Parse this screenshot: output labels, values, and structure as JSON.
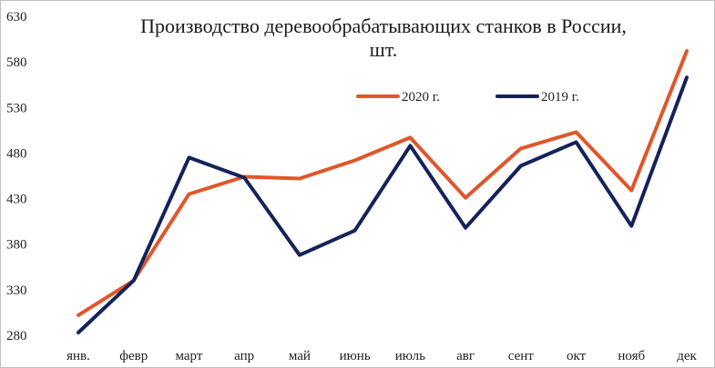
{
  "chart_data": {
    "type": "line",
    "title_line1": "Производство деревообрабатывающих станков в России,",
    "title_line2": "шт.",
    "categories": [
      "янв.",
      "февр",
      "март",
      "апр",
      "май",
      "июнь",
      "июль",
      "авг",
      "сент",
      "окт",
      "нояб",
      "дек"
    ],
    "y_ticks": [
      "280",
      "330",
      "380",
      "430",
      "480",
      "530",
      "580",
      "630"
    ],
    "ylim": [
      280,
      630
    ],
    "grid": false,
    "legend_position": "top-right",
    "series": [
      {
        "name": "2020 г.",
        "color": "#e0562b",
        "values": [
          302,
          340,
          435,
          454,
          452,
          472,
          497,
          431,
          485,
          503,
          439,
          592
        ]
      },
      {
        "name": "2019 г.",
        "color": "#13235a",
        "values": [
          283,
          340,
          475,
          453,
          368,
          395,
          488,
          398,
          466,
          492,
          400,
          563
        ]
      }
    ]
  }
}
